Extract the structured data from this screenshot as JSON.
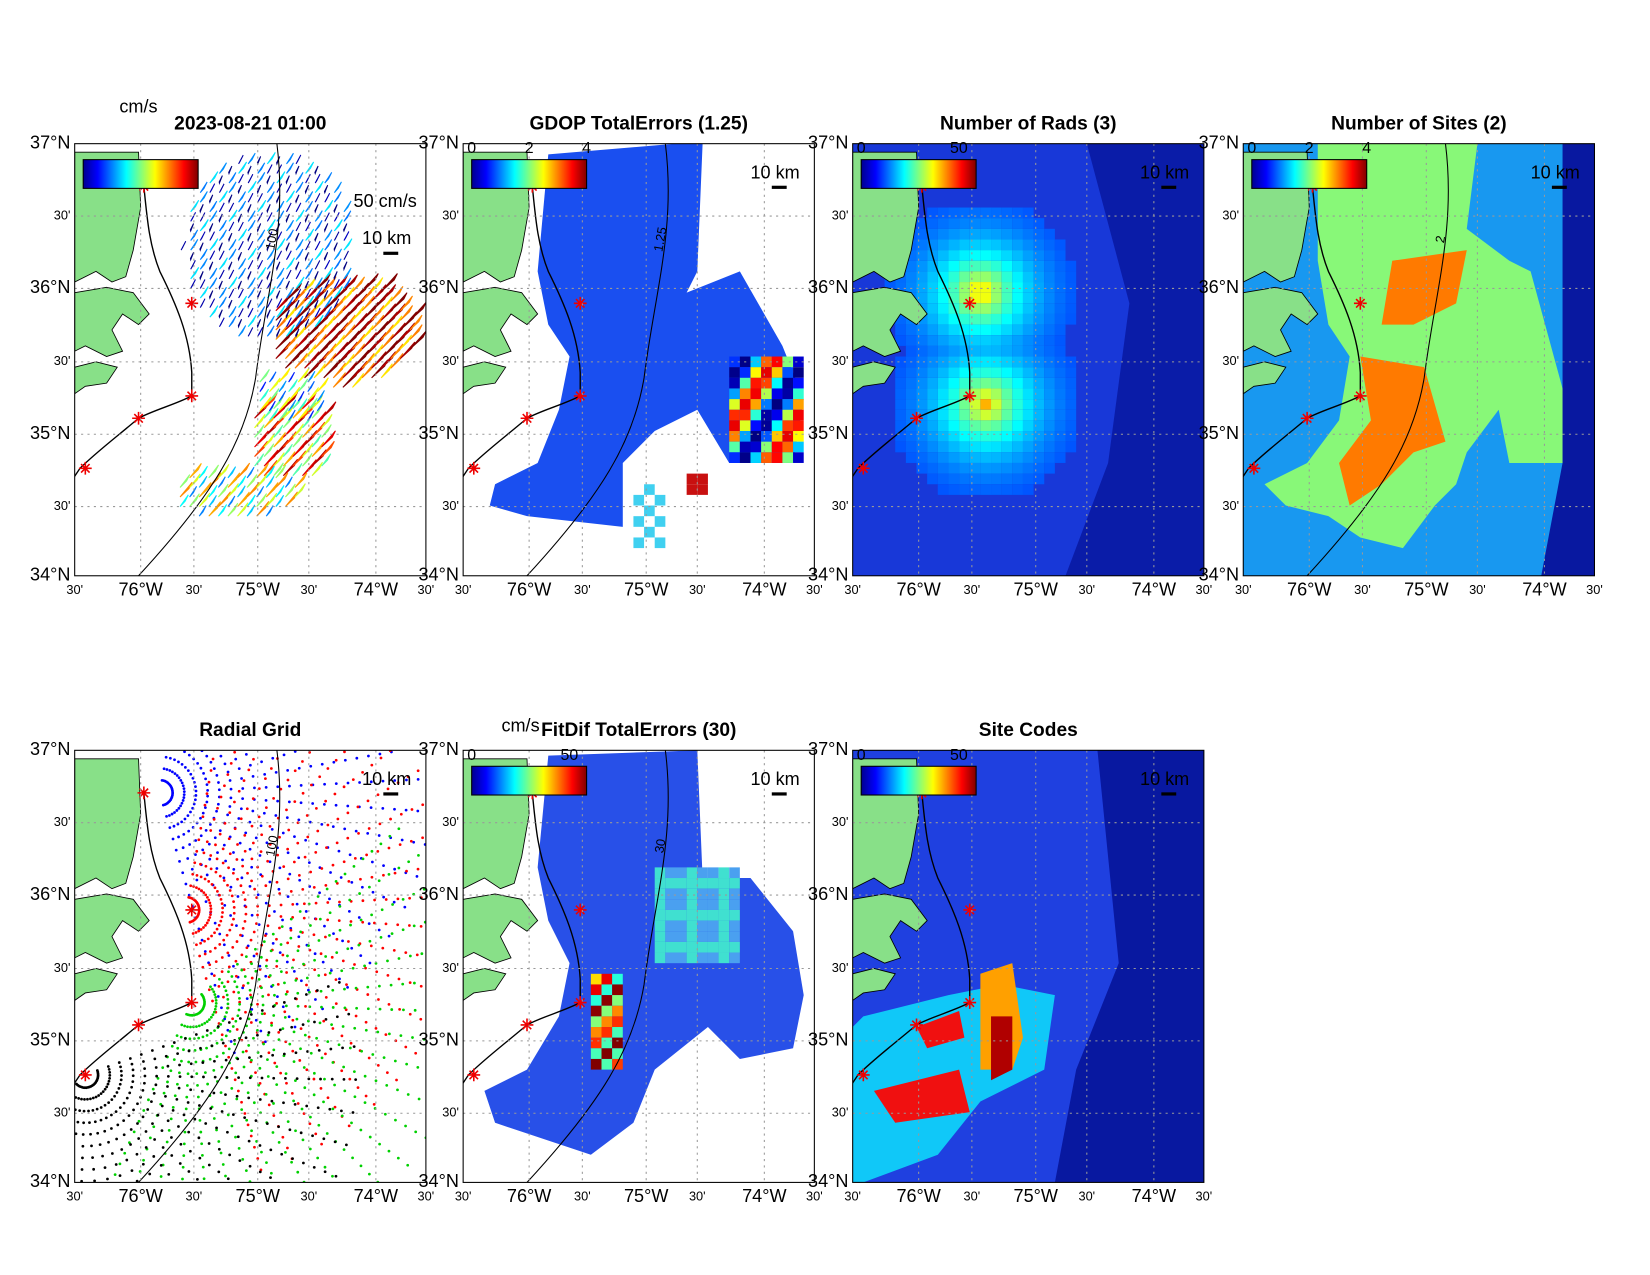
{
  "figure": {
    "lat_labels": [
      "37°N",
      "30'",
      "36°N",
      "30'",
      "35°N",
      "30'",
      "34°N"
    ],
    "lon_labels": [
      "30'",
      "76°W",
      "30'",
      "75°W",
      "30'",
      "74°W",
      "30'"
    ],
    "panels": [
      {
        "title": "2023-08-21 01:00",
        "colorbar_unit": "cm/s",
        "vector_scale": "50 cm/s",
        "distance_scale": "10 km",
        "contour_labels": [
          "100"
        ]
      },
      {
        "title": "GDOP TotalErrors (1.25)",
        "colorbar_ticks": [
          "0",
          "2",
          "4"
        ],
        "distance_scale": "10 km",
        "contour_labels": [
          "1.25"
        ]
      },
      {
        "title": "Number of Rads (3)",
        "colorbar_ticks": [
          "0",
          "50"
        ],
        "distance_scale": "10 km"
      },
      {
        "title": "Number of Sites (2)",
        "colorbar_ticks": [
          "0",
          "2",
          "4"
        ],
        "distance_scale": "10 km",
        "contour_labels": [
          "2"
        ]
      },
      {
        "title": "Radial Grid",
        "distance_scale": "10 km",
        "contour_labels": [
          "100"
        ]
      },
      {
        "title": "FitDif TotalErrors (30)",
        "colorbar_unit": "cm/s",
        "colorbar_ticks": [
          "0",
          "50"
        ],
        "distance_scale": "10 km",
        "contour_labels": [
          "30"
        ]
      },
      {
        "title": "Site Codes",
        "colorbar_ticks": [
          "0",
          "50"
        ],
        "distance_scale": "10 km"
      }
    ]
  }
}
